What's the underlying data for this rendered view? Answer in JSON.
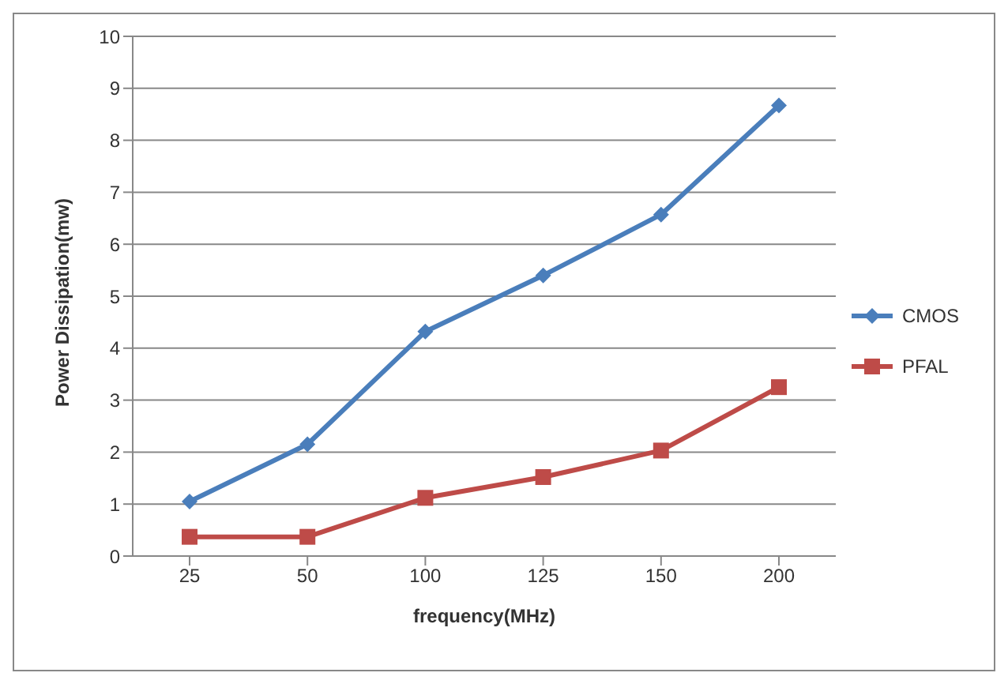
{
  "chart_data": {
    "type": "line",
    "xlabel": "frequency(MHz)",
    "ylabel": "Power Dissipation(mw)",
    "categories": [
      "25",
      "50",
      "100",
      "125",
      "150",
      "200"
    ],
    "series": [
      {
        "name": "CMOS",
        "color": "#4a7ebb",
        "marker": "diamond",
        "values": [
          1.05,
          2.15,
          4.32,
          5.4,
          6.57,
          8.67
        ]
      },
      {
        "name": "PFAL",
        "color": "#be4b48",
        "marker": "square",
        "values": [
          0.37,
          0.37,
          1.12,
          1.52,
          2.03,
          3.25
        ]
      }
    ],
    "ylim": [
      0,
      10
    ],
    "yticks": [
      0,
      1,
      2,
      3,
      4,
      5,
      6,
      7,
      8,
      9,
      10
    ],
    "grid": "y",
    "legend": "right"
  }
}
